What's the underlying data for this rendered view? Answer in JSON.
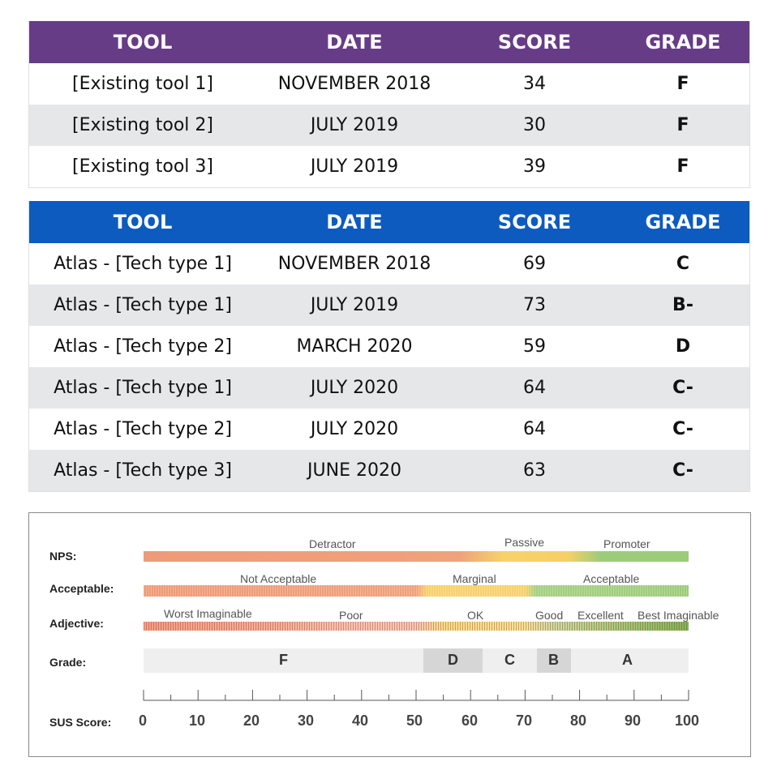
{
  "table_existing": {
    "headers": [
      "TOOL",
      "DATE",
      "SCORE",
      "GRADE"
    ],
    "rows": [
      {
        "tool": "[Existing tool 1]",
        "date": "NOVEMBER 2018",
        "score": "34",
        "grade": "F"
      },
      {
        "tool": "[Existing tool 2]",
        "date": "JULY 2019",
        "score": "30",
        "grade": "F"
      },
      {
        "tool": "[Existing tool 3]",
        "date": "JULY 2019",
        "score": "39",
        "grade": "F"
      }
    ],
    "header_color": "#673c87"
  },
  "table_atlas": {
    "headers": [
      "TOOL",
      "DATE",
      "SCORE",
      "GRADE"
    ],
    "rows": [
      {
        "tool": "Atlas - [Tech type 1]",
        "date": "NOVEMBER 2018",
        "score": "69",
        "grade": "C"
      },
      {
        "tool": "Atlas - [Tech type 1]",
        "date": "JULY 2019",
        "score": "73",
        "grade": "B-"
      },
      {
        "tool": "Atlas - [Tech type 2]",
        "date": "MARCH 2020",
        "score": "59",
        "grade": "D"
      },
      {
        "tool": "Atlas - [Tech type 1]",
        "date": "JULY 2020",
        "score": "64",
        "grade": "C-"
      },
      {
        "tool": "Atlas - [Tech type 2]",
        "date": "JULY 2020",
        "score": "64",
        "grade": "C-"
      },
      {
        "tool": "Atlas - [Tech type 3]",
        "date": "JUNE 2020",
        "score": "63",
        "grade": "C-"
      }
    ],
    "header_color": "#0d5bbf"
  },
  "sus_scale": {
    "row_labels": {
      "nps": "NPS:",
      "acceptable": "Acceptable:",
      "adjective": "Adjective:",
      "grade": "Grade:",
      "sus_score": "SUS Score:"
    },
    "nps": {
      "detractor": "Detractor",
      "passive": "Passive",
      "promoter": "Promoter"
    },
    "acceptable": {
      "not_acceptable": "Not Acceptable",
      "marginal": "Marginal",
      "acceptable": "Acceptable"
    },
    "adjective": {
      "worst": "Worst Imaginable",
      "poor": "Poor",
      "ok": "OK",
      "good": "Good",
      "excellent": "Excellent",
      "best": "Best Imaginable"
    },
    "grades": {
      "f": "F",
      "d": "D",
      "c": "C",
      "b": "B",
      "a": "A"
    },
    "ticks": [
      "0",
      "10",
      "20",
      "30",
      "40",
      "50",
      "60",
      "70",
      "80",
      "90",
      "100"
    ],
    "colors": {
      "red": "#ef9a78",
      "yellow": "#f7d26a",
      "green": "#9ccc7a",
      "grade_gray": "#d6d6d6",
      "grade_light": "#efefef"
    }
  }
}
